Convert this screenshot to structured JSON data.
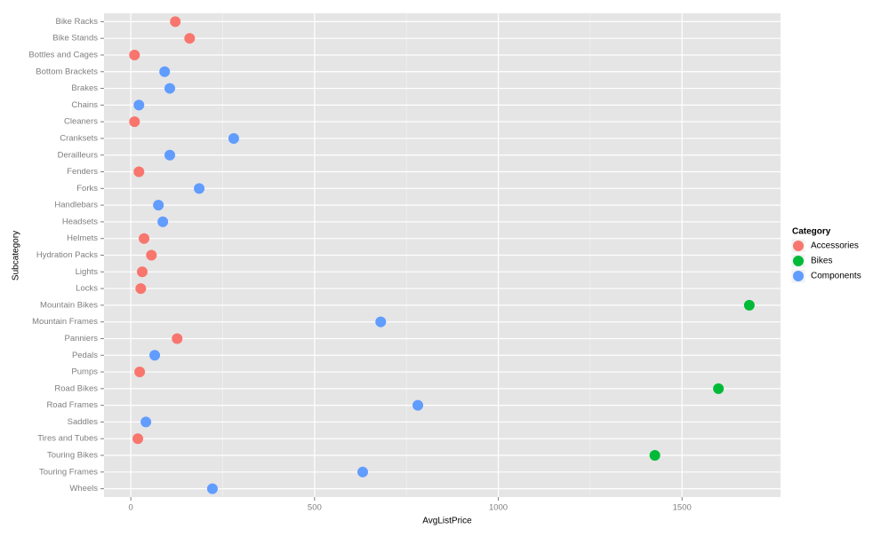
{
  "chart_data": {
    "type": "scatter",
    "x_label": "AvgListPrice",
    "y_label": "Subcategory",
    "legend_title": "Category",
    "legend_position": "right",
    "grid": true,
    "categories": [
      "Bike Racks",
      "Bike Stands",
      "Bottles and Cages",
      "Bottom Brackets",
      "Brakes",
      "Chains",
      "Cleaners",
      "Cranksets",
      "Derailleurs",
      "Fenders",
      "Forks",
      "Handlebars",
      "Headsets",
      "Helmets",
      "Hydration Packs",
      "Lights",
      "Locks",
      "Mountain Bikes",
      "Mountain Frames",
      "Panniers",
      "Pedals",
      "Pumps",
      "Road Bikes",
      "Road Frames",
      "Saddles",
      "Tires and Tubes",
      "Touring Bikes",
      "Touring Frames",
      "Wheels"
    ],
    "xlim": [
      -73,
      1768
    ],
    "xticks": [
      0,
      500,
      1000,
      1500
    ],
    "series": [
      {
        "name": "Accessories",
        "color": "#F8766D",
        "values": [
          121,
          160,
          10,
          null,
          null,
          null,
          10,
          null,
          null,
          22,
          null,
          null,
          null,
          36,
          56,
          31,
          27,
          null,
          null,
          126,
          null,
          24,
          null,
          null,
          null,
          19,
          null,
          null,
          null
        ]
      },
      {
        "name": "Bikes",
        "color": "#00BA38",
        "values": [
          null,
          null,
          null,
          null,
          null,
          null,
          null,
          null,
          null,
          null,
          null,
          null,
          null,
          null,
          null,
          null,
          null,
          1683,
          null,
          null,
          null,
          null,
          1599,
          null,
          null,
          null,
          1426,
          null,
          null
        ]
      },
      {
        "name": "Components",
        "color": "#619CFF",
        "values": [
          null,
          null,
          null,
          92,
          106,
          22,
          null,
          280,
          106,
          null,
          186,
          75,
          87,
          null,
          null,
          null,
          null,
          null,
          680,
          null,
          65,
          null,
          null,
          781,
          41,
          null,
          null,
          631,
          222
        ]
      }
    ]
  }
}
